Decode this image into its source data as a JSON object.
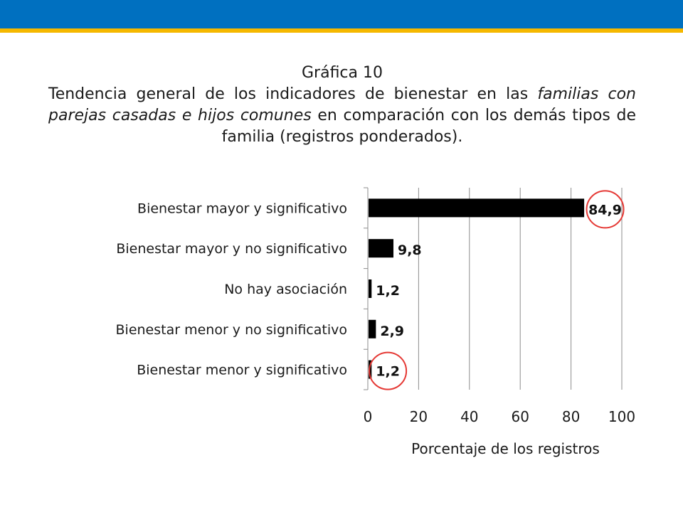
{
  "header": {
    "bar_color": "#0070C0",
    "accent_color": "#F5B800"
  },
  "title": {
    "line1": "Gráfica 10",
    "part1": "Tendencia general de los indicadores de bienestar en las ",
    "italic": "familias con parejas casadas e hijos comunes",
    "part2": " en comparación con los demás tipos de familia (registros ponderados)."
  },
  "chart_data": {
    "type": "bar",
    "orientation": "horizontal",
    "categories": [
      "Bienestar mayor y significativo",
      "Bienestar mayor y no significativo",
      "No hay asociación",
      "Bienestar menor y no significativo",
      "Bienestar menor y significativo"
    ],
    "values": [
      84.9,
      9.8,
      1.2,
      2.9,
      1.2
    ],
    "value_labels": [
      "84,9",
      "9,8",
      "1,2",
      "2,9",
      "1,2"
    ],
    "highlighted": [
      0,
      4
    ],
    "xlabel": "Porcentaje de los registros",
    "ylabel": "",
    "xlim": [
      0,
      100
    ],
    "xticks": [
      "0",
      "20",
      "40",
      "60",
      "80",
      "100"
    ],
    "xtick_values": [
      0,
      20,
      40,
      60,
      80,
      100
    ],
    "grid": true,
    "bar_color": "#000000",
    "highlight_color": "#E53935"
  }
}
